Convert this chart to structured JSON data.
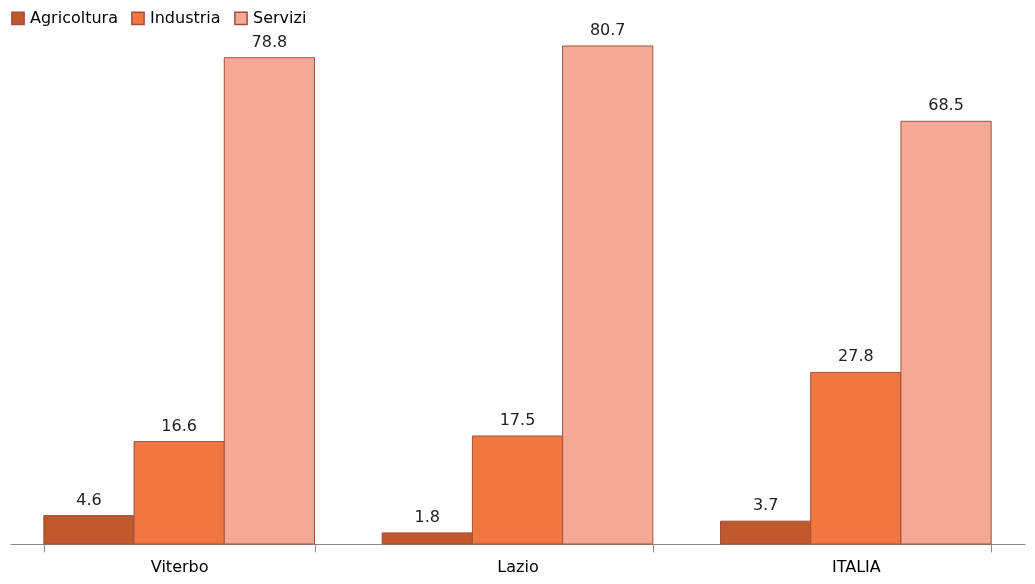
{
  "chart_data": {
    "type": "bar",
    "categories": [
      "Viterbo",
      "Lazio",
      "ITALIA"
    ],
    "series": [
      {
        "name": "Agricoltura",
        "color": "#c0582b",
        "values": [
          4.6,
          1.8,
          3.7
        ]
      },
      {
        "name": "Industria",
        "color": "#f07840",
        "values": [
          16.6,
          17.5,
          27.8
        ]
      },
      {
        "name": "Servizi",
        "color": "#f4a896",
        "values": [
          78.8,
          80.7,
          68.5
        ]
      }
    ],
    "data_labels": true,
    "legend": "top",
    "grid": false
  }
}
